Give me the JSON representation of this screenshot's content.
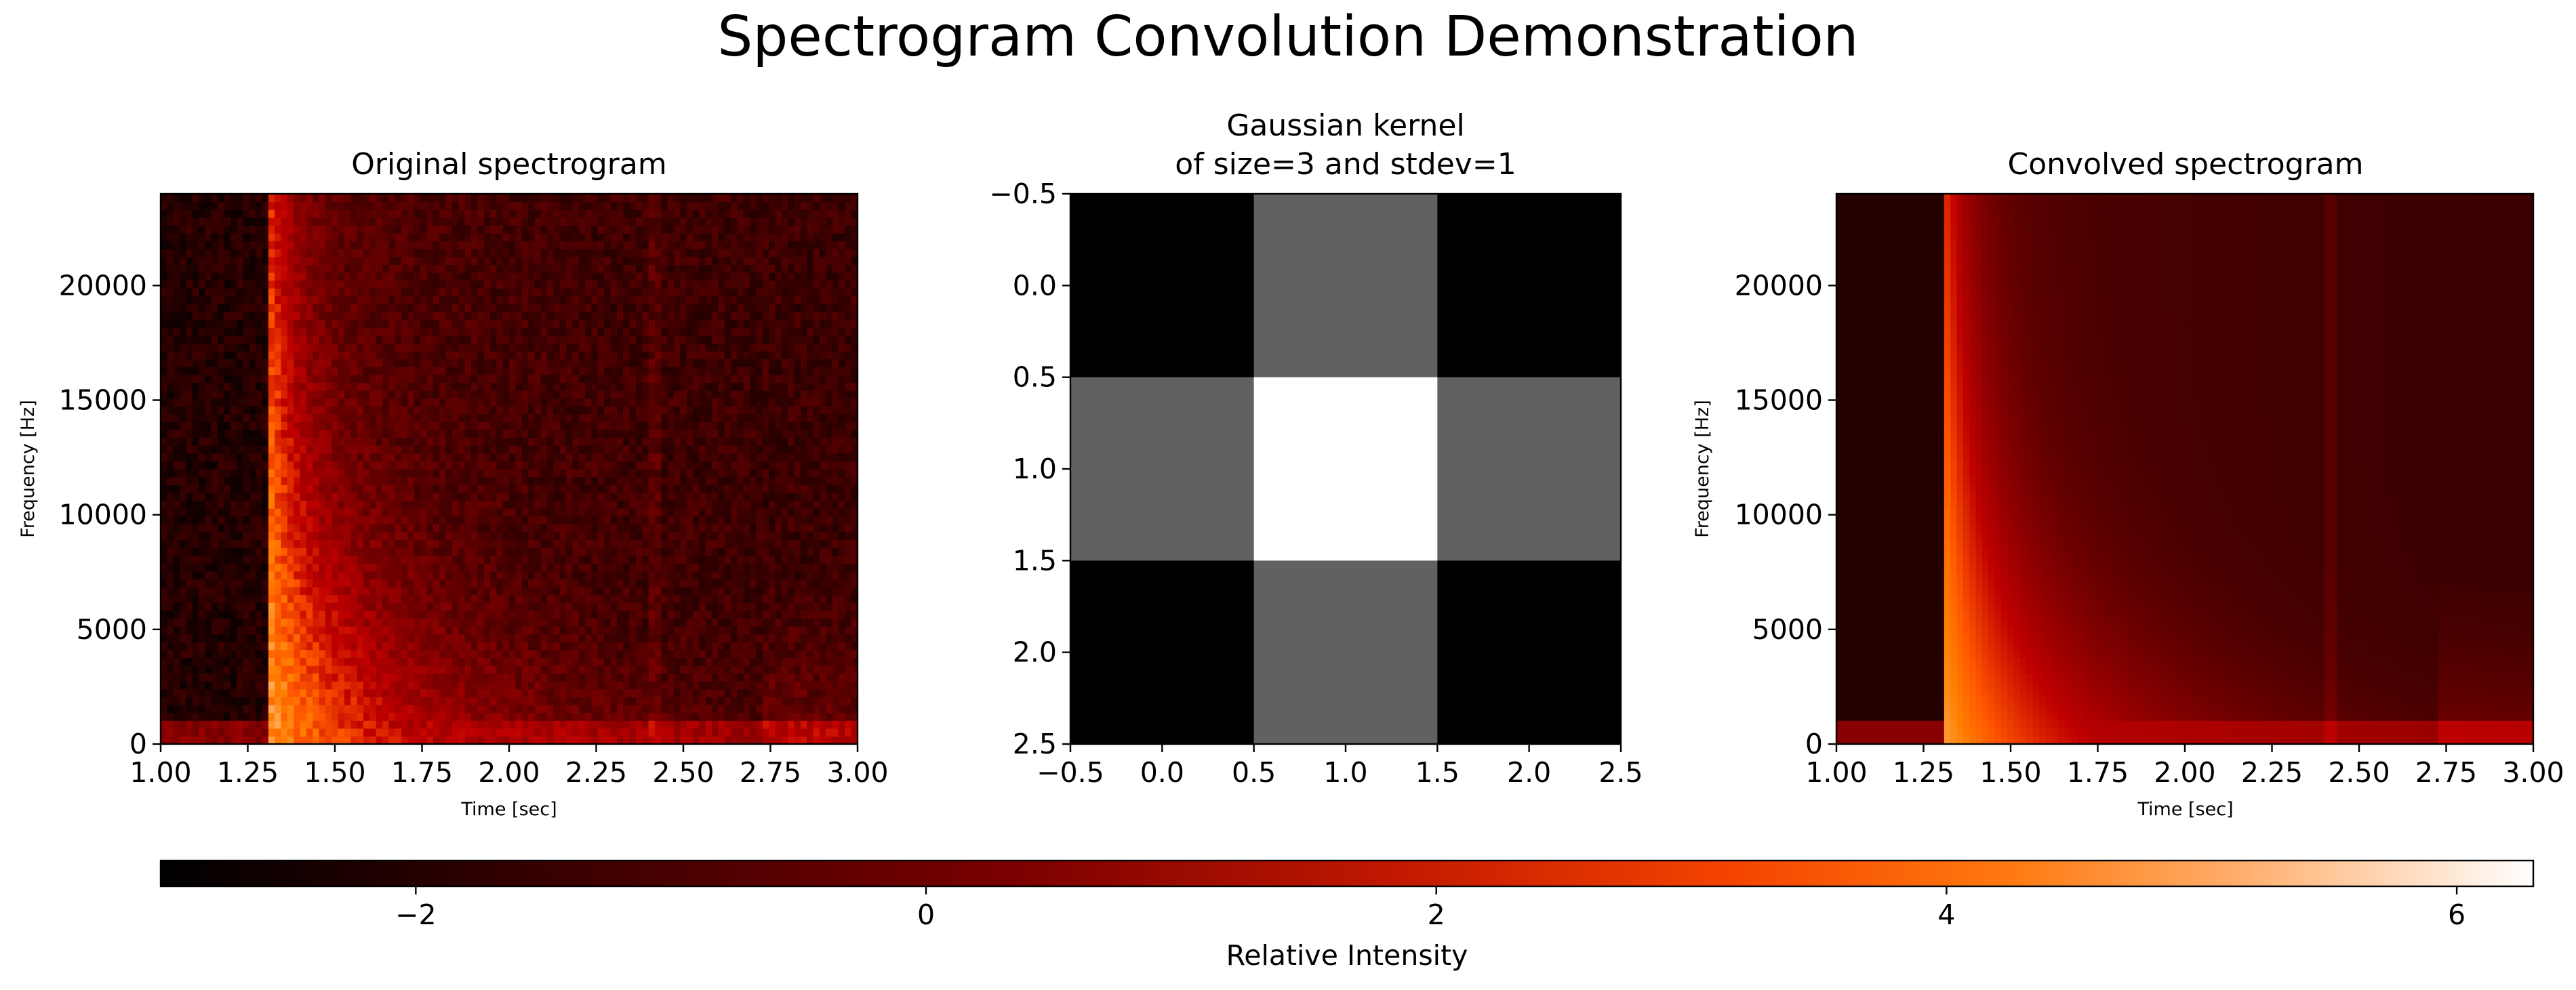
{
  "figure": {
    "title": "Spectrogram Convolution Demonstration"
  },
  "chart_data": [
    {
      "type": "heatmap",
      "title": "Original spectrogram",
      "xlabel": "Time [sec]",
      "ylabel": "Frequency [Hz]",
      "xlim": [
        1.0,
        3.0
      ],
      "ylim": [
        0,
        24000
      ],
      "xticks": [
        1.0,
        1.25,
        1.5,
        1.75,
        2.0,
        2.25,
        2.5,
        2.75,
        3.0
      ],
      "xtick_labels": [
        "1.00",
        "1.25",
        "1.50",
        "1.75",
        "2.00",
        "2.25",
        "2.50",
        "2.75",
        "3.00"
      ],
      "yticks": [
        0,
        5000,
        10000,
        15000,
        20000
      ],
      "ytick_labels": [
        "0",
        "5000",
        "10000",
        "15000",
        "20000"
      ],
      "colormap": "gist_heat",
      "value_range": [
        -3,
        6.3
      ],
      "description_of_pattern": {
        "onset_time": 1.31,
        "peak_time": 1.35,
        "decay_end_time_low_freq": 1.9,
        "late_event_time": 2.75,
        "faint_line_time": 2.42
      }
    },
    {
      "type": "heatmap",
      "title": "Gaussian kernel\nof size=3 and stdev=1",
      "title_lines": [
        "Gaussian kernel",
        "of size=3 and stdev=1"
      ],
      "xlabel": "",
      "ylabel": "",
      "xlim": [
        -0.5,
        2.5
      ],
      "ylim": [
        2.5,
        -0.5
      ],
      "xticks": [
        -0.5,
        0.0,
        0.5,
        1.0,
        1.5,
        2.0,
        2.5
      ],
      "xtick_labels": [
        "−0.5",
        "0.0",
        "0.5",
        "1.0",
        "1.5",
        "2.0",
        "2.5"
      ],
      "yticks": [
        -0.5,
        0.0,
        0.5,
        1.0,
        1.5,
        2.0,
        2.5
      ],
      "ytick_labels": [
        "−0.5",
        "0.0",
        "0.5",
        "1.0",
        "1.5",
        "2.0",
        "2.5"
      ],
      "colormap": "gray",
      "values": [
        [
          0.0,
          0.5,
          0.0
        ],
        [
          0.5,
          1.0,
          0.5
        ],
        [
          0.0,
          0.5,
          0.0
        ]
      ]
    },
    {
      "type": "heatmap",
      "title": "Convolved spectrogram",
      "xlabel": "Time [sec]",
      "ylabel": "Frequency [Hz]",
      "xlim": [
        1.0,
        3.0
      ],
      "ylim": [
        0,
        24000
      ],
      "xticks": [
        1.0,
        1.25,
        1.5,
        1.75,
        2.0,
        2.25,
        2.5,
        2.75,
        3.0
      ],
      "xtick_labels": [
        "1.00",
        "1.25",
        "1.50",
        "1.75",
        "2.00",
        "2.25",
        "2.50",
        "2.75",
        "3.00"
      ],
      "yticks": [
        0,
        5000,
        10000,
        15000,
        20000
      ],
      "ytick_labels": [
        "0",
        "5000",
        "10000",
        "15000",
        "20000"
      ],
      "colormap": "gist_heat",
      "value_range": [
        -3,
        6.3
      ],
      "smoothed": true
    }
  ],
  "colorbar": {
    "label": "Relative Intensity",
    "range": [
      -3,
      6.3
    ],
    "ticks": [
      -2,
      0,
      2,
      4,
      6
    ],
    "tick_labels": [
      "−2",
      "0",
      "2",
      "4",
      "6"
    ],
    "colormap": "gist_heat"
  }
}
